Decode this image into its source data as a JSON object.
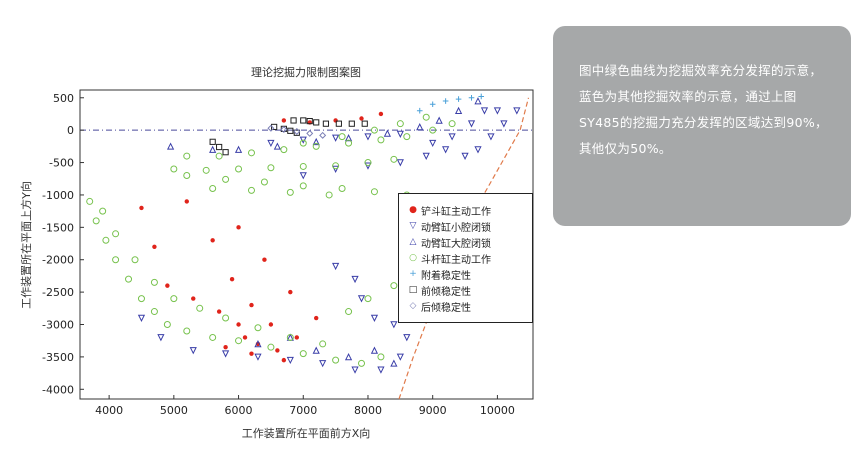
{
  "callout": {
    "text": "图中绿色曲线为挖掘效率充分发挥的示意，蓝色为其他挖掘效率的示意，通过上图SY485的挖掘力充分发挥的区域达到90%， 其他仅为50%。"
  },
  "chart_data": {
    "type": "scatter",
    "title": "理论挖掘力限制图案图",
    "xlabel": "工作装置所在平面前方X向",
    "ylabel": "工作装置所在平面上方Y向",
    "xlim": [
      3550,
      10550
    ],
    "ylim": [
      -4150,
      620
    ],
    "xticks": [
      4000,
      5000,
      6000,
      7000,
      8000,
      9000,
      10000
    ],
    "yticks": [
      500,
      0,
      -500,
      -1000,
      -1500,
      -2000,
      -2500,
      -3000,
      -3500,
      -4000
    ],
    "grid": false,
    "legend_position": "right",
    "reference_line_y": 0,
    "boundary_curve": [
      [
        8480,
        -4150
      ],
      [
        8700,
        -3500
      ],
      [
        9080,
        -2500
      ],
      [
        9500,
        -1500
      ],
      [
        9900,
        -800
      ],
      [
        10350,
        0
      ],
      [
        10480,
        500
      ]
    ],
    "series": [
      {
        "name": "铲斗缸主动工作",
        "color": "#e0241b",
        "marker": "dot",
        "points": [
          [
            4500,
            -1200
          ],
          [
            4700,
            -1800
          ],
          [
            4900,
            -2400
          ],
          [
            5300,
            -2600
          ],
          [
            5700,
            -2800
          ],
          [
            6000,
            -3000
          ],
          [
            6100,
            -3200
          ],
          [
            6300,
            -3300
          ],
          [
            6600,
            -3400
          ],
          [
            5200,
            -1100
          ],
          [
            5600,
            -1700
          ],
          [
            5900,
            -2300
          ],
          [
            6200,
            -2700
          ],
          [
            6500,
            -3000
          ],
          [
            6900,
            -3200
          ],
          [
            6000,
            -1500
          ],
          [
            6400,
            -2000
          ],
          [
            6800,
            -2500
          ],
          [
            7200,
            -2900
          ],
          [
            5800,
            -3350
          ],
          [
            6200,
            -3450
          ],
          [
            6700,
            -3550
          ],
          [
            6700,
            150
          ],
          [
            7100,
            120
          ],
          [
            7500,
            150
          ],
          [
            7900,
            180
          ],
          [
            8200,
            250
          ]
        ]
      },
      {
        "name": "动臂缸小腔闭锁",
        "color": "#3a3ea8",
        "marker": "tri-down",
        "points": [
          [
            4500,
            -2900
          ],
          [
            4800,
            -3200
          ],
          [
            5300,
            -3400
          ],
          [
            5800,
            -3450
          ],
          [
            6300,
            -3500
          ],
          [
            6800,
            -3550
          ],
          [
            7300,
            -3600
          ],
          [
            7800,
            -3700
          ],
          [
            8200,
            -3700
          ],
          [
            8500,
            -3500
          ],
          [
            7500,
            -2100
          ],
          [
            7800,
            -2300
          ],
          [
            7900,
            -2600
          ],
          [
            8100,
            -2900
          ],
          [
            8400,
            -3000
          ],
          [
            8600,
            -3200
          ],
          [
            6500,
            -200
          ],
          [
            7000,
            -150
          ],
          [
            7500,
            -120
          ],
          [
            8000,
            -100
          ],
          [
            8500,
            -60
          ],
          [
            9000,
            -200
          ],
          [
            9300,
            -100
          ],
          [
            9500,
            -400
          ],
          [
            9700,
            -300
          ],
          [
            9900,
            -100
          ],
          [
            10100,
            100
          ],
          [
            10300,
            300
          ],
          [
            7000,
            -700
          ],
          [
            7500,
            -600
          ],
          [
            8000,
            -550
          ],
          [
            8500,
            -500
          ],
          [
            8900,
            -400
          ],
          [
            9200,
            -300
          ],
          [
            9600,
            100
          ],
          [
            9800,
            300
          ],
          [
            10000,
            300
          ]
        ]
      },
      {
        "name": "动臂缸大腔闭锁",
        "color": "#3a3ea8",
        "marker": "tri-up",
        "points": [
          [
            4950,
            -250
          ],
          [
            5600,
            -300
          ],
          [
            6000,
            -300
          ],
          [
            6600,
            -250
          ],
          [
            7200,
            -180
          ],
          [
            7700,
            -120
          ],
          [
            8300,
            -50
          ],
          [
            8800,
            50
          ],
          [
            9100,
            150
          ],
          [
            9400,
            300
          ],
          [
            9700,
            450
          ],
          [
            6800,
            -3200
          ],
          [
            7200,
            -3400
          ],
          [
            7700,
            -3500
          ],
          [
            8100,
            -3400
          ],
          [
            8400,
            -3600
          ],
          [
            6300,
            -3300
          ]
        ]
      },
      {
        "name": "斗杆缸主动工作",
        "color": "#77c24d",
        "marker": "circle",
        "points": [
          [
            3700,
            -1100
          ],
          [
            3800,
            -1400
          ],
          [
            3950,
            -1700
          ],
          [
            4100,
            -2000
          ],
          [
            4300,
            -2300
          ],
          [
            4500,
            -2600
          ],
          [
            4700,
            -2800
          ],
          [
            4900,
            -3000
          ],
          [
            5200,
            -3100
          ],
          [
            5600,
            -3200
          ],
          [
            6000,
            -3250
          ],
          [
            6500,
            -3350
          ],
          [
            7000,
            -3450
          ],
          [
            7500,
            -3550
          ],
          [
            7900,
            -3600
          ],
          [
            8200,
            -3500
          ],
          [
            3900,
            -1250
          ],
          [
            4100,
            -1600
          ],
          [
            4400,
            -2000
          ],
          [
            4700,
            -2350
          ],
          [
            5000,
            -2600
          ],
          [
            5400,
            -2750
          ],
          [
            5800,
            -2900
          ],
          [
            6300,
            -3050
          ],
          [
            6800,
            -3200
          ],
          [
            7300,
            -3300
          ],
          [
            7700,
            -2800
          ],
          [
            8000,
            -2600
          ],
          [
            8400,
            -2400
          ],
          [
            8700,
            -2400
          ],
          [
            5200,
            -400
          ],
          [
            5700,
            -400
          ],
          [
            6200,
            -350
          ],
          [
            6700,
            -300
          ],
          [
            7200,
            -250
          ],
          [
            7700,
            -200
          ],
          [
            8200,
            -150
          ],
          [
            8600,
            -100
          ],
          [
            9000,
            0
          ],
          [
            9300,
            100
          ],
          [
            5000,
            -600
          ],
          [
            5500,
            -620
          ],
          [
            6000,
            -600
          ],
          [
            6500,
            -580
          ],
          [
            7000,
            -560
          ],
          [
            7500,
            -550
          ],
          [
            8000,
            -500
          ],
          [
            8400,
            -450
          ],
          [
            5200,
            -700
          ],
          [
            5800,
            -760
          ],
          [
            6400,
            -800
          ],
          [
            7000,
            -860
          ],
          [
            7600,
            -900
          ],
          [
            8100,
            -950
          ],
          [
            8600,
            -1000
          ],
          [
            5600,
            -900
          ],
          [
            6200,
            -930
          ],
          [
            6800,
            -960
          ],
          [
            7400,
            -1000
          ],
          [
            7000,
            -200
          ],
          [
            7600,
            -100
          ],
          [
            8100,
            0
          ],
          [
            8500,
            100
          ],
          [
            8900,
            200
          ]
        ]
      },
      {
        "name": "附着稳定性",
        "color": "#4aa0d8",
        "marker": "plus",
        "points": [
          [
            8800,
            300
          ],
          [
            9000,
            400
          ],
          [
            9200,
            450
          ],
          [
            9400,
            480
          ],
          [
            9600,
            500
          ],
          [
            9750,
            520
          ]
        ]
      },
      {
        "name": "前倾稳定性",
        "color": "#222222",
        "marker": "square",
        "points": [
          [
            5600,
            -180
          ],
          [
            5700,
            -260
          ],
          [
            5800,
            -340
          ],
          [
            6550,
            50
          ],
          [
            6700,
            20
          ],
          [
            6800,
            -10
          ],
          [
            6900,
            -40
          ],
          [
            6850,
            150
          ],
          [
            7000,
            150
          ],
          [
            7100,
            140
          ],
          [
            7200,
            120
          ],
          [
            7350,
            100
          ],
          [
            7550,
            100
          ],
          [
            7750,
            100
          ],
          [
            7950,
            100
          ]
        ]
      },
      {
        "name": "后倾稳定性",
        "color": "#7b7fb5",
        "marker": "diamond",
        "points": [
          [
            6500,
            30
          ],
          [
            6700,
            10
          ],
          [
            6900,
            -20
          ],
          [
            7100,
            -50
          ],
          [
            7300,
            -80
          ]
        ]
      }
    ]
  }
}
